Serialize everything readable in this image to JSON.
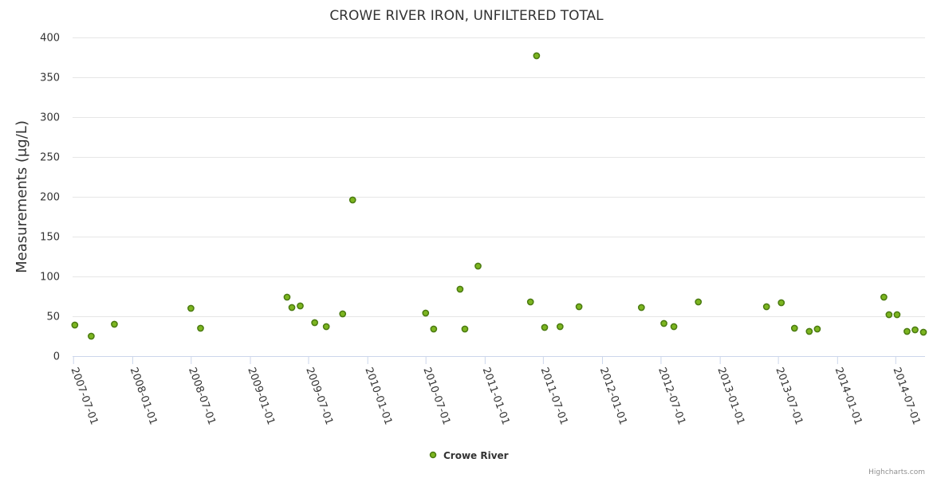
{
  "credits": "Highcharts.com",
  "chart_data": {
    "type": "scatter",
    "title": "CROWE RIVER IRON, UNFILTERED TOTAL",
    "xlabel": "",
    "ylabel": "Measurements (μg/L)",
    "ylim": [
      0,
      400
    ],
    "yticks": [
      "0",
      "50",
      "100",
      "150",
      "200",
      "250",
      "300",
      "350",
      "400"
    ],
    "xlim": [
      "2007-06-28",
      "2014-09-30"
    ],
    "xticks": [
      "2007-07-01",
      "2008-01-01",
      "2008-07-01",
      "2009-01-01",
      "2009-07-01",
      "2010-01-01",
      "2010-07-01",
      "2011-01-01",
      "2011-07-01",
      "2012-01-01",
      "2012-07-01",
      "2013-01-01",
      "2013-07-01",
      "2014-01-01",
      "2014-07-01"
    ],
    "color": "#7cb520",
    "markerStroke": "#4a7a10",
    "legend_position": "bottom-center",
    "series": [
      {
        "name": "Crowe River",
        "x": [
          "2007-07-05",
          "2007-08-25",
          "2007-11-05",
          "2008-06-30",
          "2008-07-30",
          "2009-04-25",
          "2009-05-10",
          "2009-06-05",
          "2009-07-20",
          "2009-08-25",
          "2009-10-15",
          "2009-11-15",
          "2010-06-30",
          "2010-07-25",
          "2010-10-15",
          "2010-10-30",
          "2010-12-10",
          "2011-05-22",
          "2011-06-10",
          "2011-07-05",
          "2011-08-22",
          "2011-10-20",
          "2012-05-01",
          "2012-07-10",
          "2012-08-10",
          "2012-10-25",
          "2013-05-25",
          "2013-07-10",
          "2013-08-20",
          "2013-10-05",
          "2013-10-30",
          "2014-05-25",
          "2014-06-10",
          "2014-07-05",
          "2014-08-05",
          "2014-08-30",
          "2014-09-25"
        ],
        "values": [
          39,
          25,
          40,
          60,
          35,
          74,
          61,
          63,
          42,
          37,
          53,
          196,
          54,
          34,
          84,
          34,
          113,
          68,
          377,
          36,
          37,
          62,
          61,
          41,
          37,
          68,
          62,
          67,
          35,
          31,
          34,
          74,
          52,
          52,
          31,
          33,
          30
        ]
      }
    ]
  }
}
